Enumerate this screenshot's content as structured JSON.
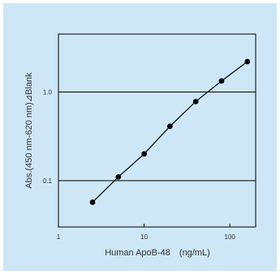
{
  "chart_data": {
    "type": "line",
    "title": "",
    "xlabel": "Human ApoB-48　(ng/mL)",
    "ylabel": "Abs.(450 nm-620 nm)⊿Blank",
    "x_scale": "log",
    "y_scale": "log",
    "xlim": [
      1,
      200
    ],
    "ylim": [
      0.03,
      4.5
    ],
    "x_ticks": [
      {
        "value": 1,
        "label": "1"
      },
      {
        "value": 10,
        "label": "10"
      },
      {
        "value": 100,
        "label": "100"
      }
    ],
    "y_ticks": [
      {
        "value": 0.1,
        "label": "0.1"
      },
      {
        "value": 1.0,
        "label": "1.0"
      }
    ],
    "gridlines_y": [
      0.1,
      1.0
    ],
    "grid": "horizontal at 0.1 and 1.0",
    "legend": "none",
    "series": [
      {
        "x": [
          2.5,
          5,
          10,
          20,
          40,
          80,
          160
        ],
        "y": [
          0.057,
          0.11,
          0.2,
          0.41,
          0.78,
          1.33,
          2.2
        ],
        "marker": "circle",
        "color": "#000000"
      }
    ]
  },
  "colors": {
    "panel_background": "#cde7f6",
    "plot_background": "#cde7f6",
    "line": "#000000",
    "text": "#333333"
  }
}
